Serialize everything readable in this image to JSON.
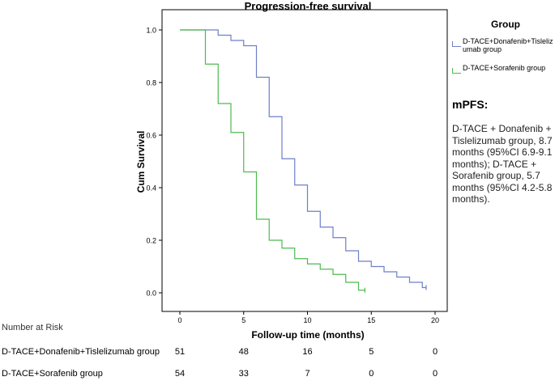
{
  "chart_data": {
    "type": "line",
    "step": true,
    "title": "Progression-free survival",
    "xlabel": "Follow-up time (months)",
    "ylabel": "Cum Survival",
    "xlim": [
      0,
      20
    ],
    "ylim": [
      0,
      1.0
    ],
    "xticks": [
      "0",
      "5",
      "10",
      "15",
      "20"
    ],
    "yticks": [
      "0.0",
      "0.2",
      "0.4",
      "0.6",
      "0.8",
      "1.0"
    ],
    "grid": false,
    "legend_title": "Group",
    "legend_position": "right",
    "series": [
      {
        "name": "D-TACE+Donafenib+Tislelizumab group",
        "color": "#6e7fc7",
        "x": [
          0,
          3,
          4,
          5,
          6,
          7,
          8,
          9,
          10,
          11,
          12,
          13,
          14,
          15,
          16,
          17,
          18,
          19
        ],
        "y": [
          1.0,
          0.98,
          0.96,
          0.94,
          0.82,
          0.67,
          0.51,
          0.41,
          0.31,
          0.25,
          0.21,
          0.16,
          0.12,
          0.1,
          0.08,
          0.06,
          0.04,
          0.02
        ]
      },
      {
        "name": "D-TACE+Sorafenib group",
        "color": "#4dbb4d",
        "x": [
          0,
          2,
          3,
          4,
          5,
          6,
          7,
          8,
          9,
          10,
          11,
          12,
          13,
          14
        ],
        "y": [
          1.0,
          0.87,
          0.72,
          0.61,
          0.46,
          0.28,
          0.2,
          0.17,
          0.13,
          0.11,
          0.09,
          0.07,
          0.04,
          0.01
        ]
      }
    ],
    "censor_end": [
      19.3,
      14.5
    ]
  },
  "mpfs": {
    "title": "mPFS:",
    "text": "D-TACE + Donafenib + Tislelizumab group, 8.7 months (95%CI 6.9-9.1 months); D-TACE + Sorafenib group, 5.7 months (95%CI 4.2-5.8 months)."
  },
  "risk_table": {
    "heading": "Number at Risk",
    "times": [
      0,
      5,
      10,
      15,
      20
    ],
    "rows": [
      {
        "label": "D-TACE+Donafenib+Tislelizumab group",
        "values": [
          "51",
          "48",
          "16",
          "5",
          "0"
        ]
      },
      {
        "label": "D-TACE+Sorafenib group",
        "values": [
          "54",
          "33",
          "7",
          "0",
          "0"
        ]
      }
    ]
  }
}
